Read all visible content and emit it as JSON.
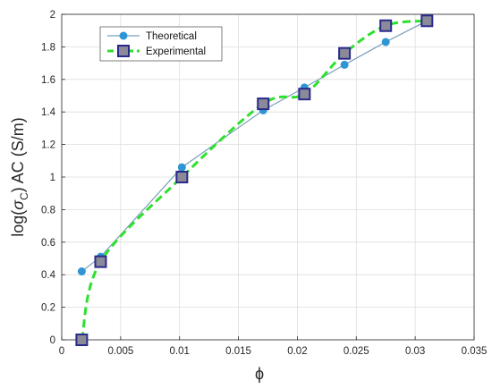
{
  "chart_data": {
    "type": "line",
    "xlabel": "ϕ",
    "ylabel_parts": {
      "pre": "log(",
      "sym": "σ",
      "sub": "C",
      "post": ") AC (S/m)"
    },
    "xlim": [
      0,
      0.035
    ],
    "ylim": [
      0,
      2
    ],
    "xticks": [
      0,
      0.005,
      0.01,
      0.015,
      0.02,
      0.025,
      0.03,
      0.035
    ],
    "xtick_labels": [
      "0",
      "0.005",
      "0.01",
      "0.015",
      "0.02",
      "0.025",
      "0.03",
      "0.035"
    ],
    "yticks": [
      0,
      0.2,
      0.4,
      0.6,
      0.8,
      1,
      1.2,
      1.4,
      1.6,
      1.8,
      2
    ],
    "ytick_labels": [
      "0",
      "0.2",
      "0.4",
      "0.6",
      "0.8",
      "1",
      "1.2",
      "1.4",
      "1.6",
      "1.8",
      "2"
    ],
    "grid": true,
    "legend_position": "top-left",
    "series": [
      {
        "name": "Theoretical",
        "style": "solid-line-circle-markers",
        "color": "#7aa0b8",
        "marker_color": "#2f95d4",
        "x": [
          0.0017,
          0.0033,
          0.0102,
          0.0171,
          0.0206,
          0.024,
          0.0275,
          0.031
        ],
        "y": [
          0.42,
          0.51,
          1.06,
          1.41,
          1.55,
          1.69,
          1.83,
          1.96
        ]
      },
      {
        "name": "Experimental",
        "style": "dashed-line-square-markers",
        "color": "#2ee02e",
        "marker_face": "#8a8a98",
        "marker_edge": "#2a2a8c",
        "x": [
          0.0017,
          0.0033,
          0.0102,
          0.0171,
          0.0206,
          0.024,
          0.0275,
          0.031
        ],
        "y": [
          0.0,
          0.48,
          1.0,
          1.45,
          1.51,
          1.76,
          1.93,
          1.96
        ]
      }
    ]
  }
}
